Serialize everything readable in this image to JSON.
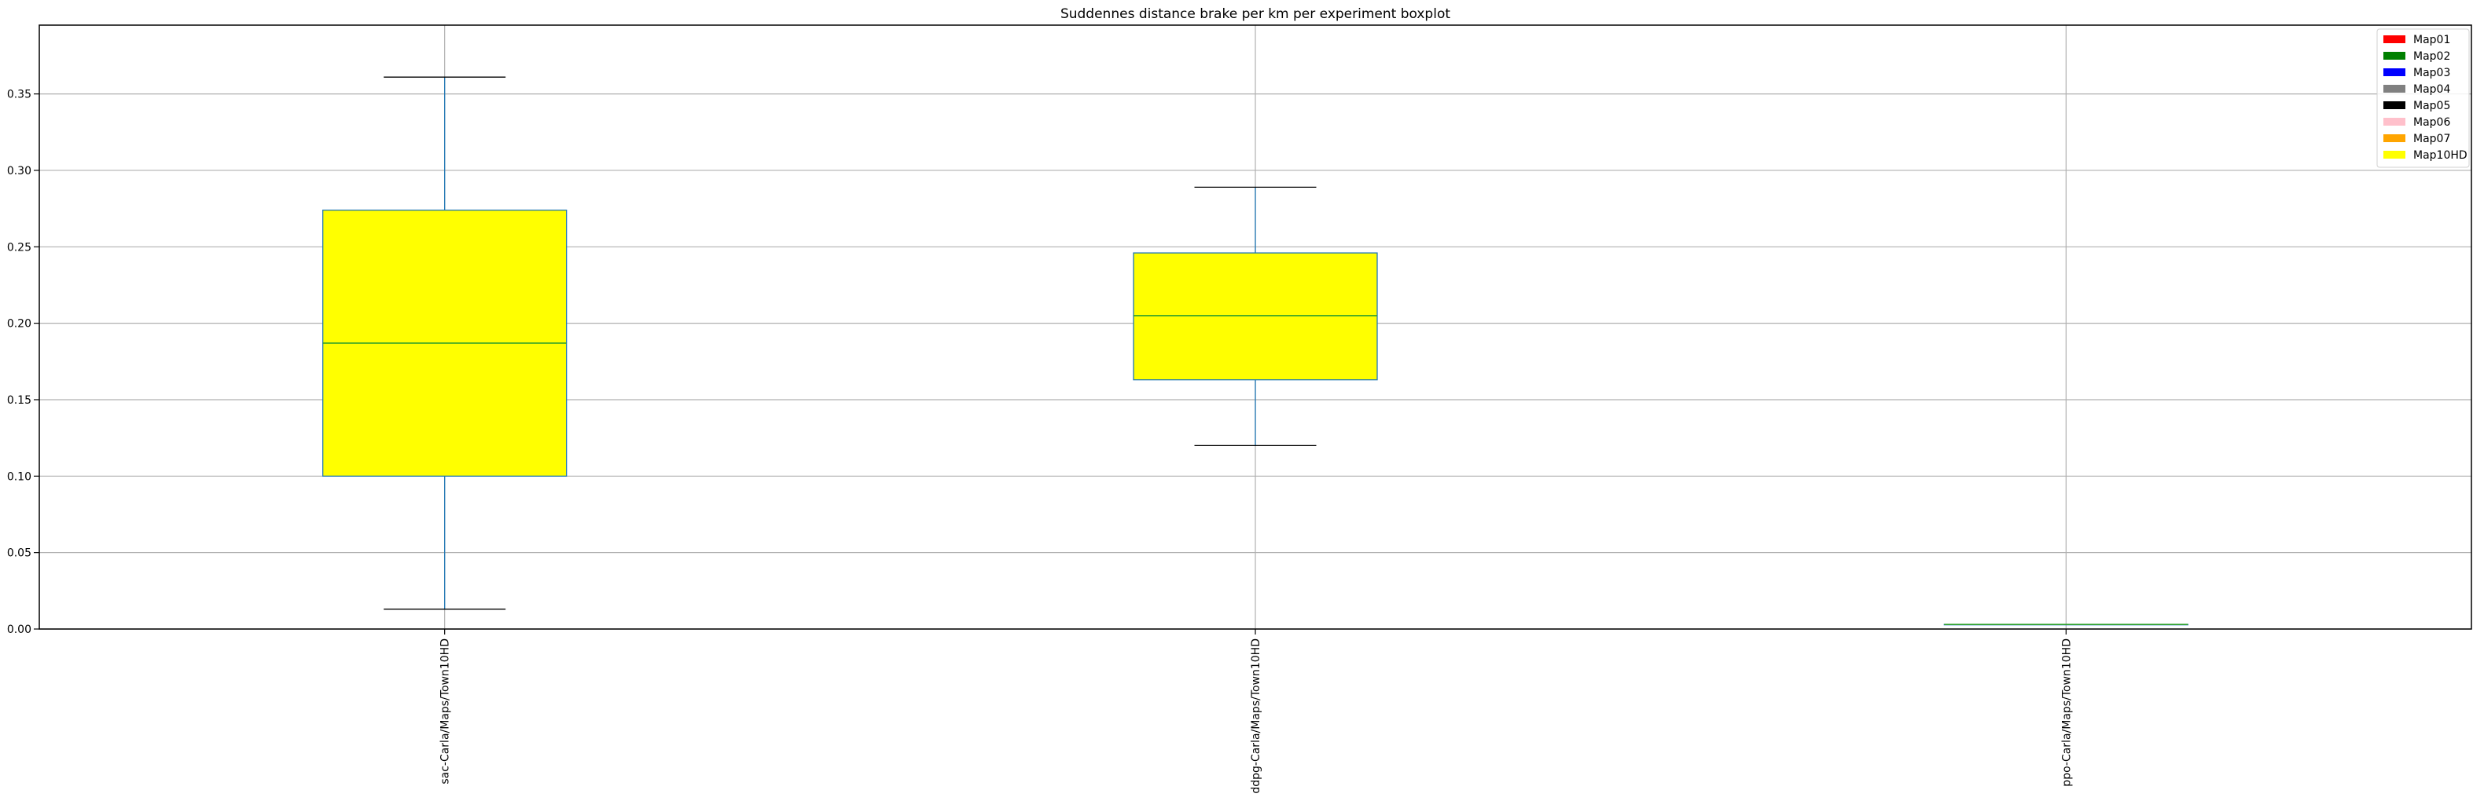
{
  "chart_data": {
    "type": "boxplot",
    "title": "Suddennes distance brake per km per experiment boxplot",
    "xlabel": "",
    "ylabel": "",
    "ylim": [
      0.0,
      0.395
    ],
    "yticks": [
      "0.00",
      "0.05",
      "0.10",
      "0.15",
      "0.20",
      "0.25",
      "0.30",
      "0.35"
    ],
    "grid": true,
    "legend_position": "top-right",
    "categories": [
      "sac-Carla/Maps/Town10HD",
      "ddpg-Carla/Maps/Town10HD",
      "ppo-Carla/Maps/Town10HD"
    ],
    "boxes": [
      {
        "category": "sac-Carla/Maps/Town10HD",
        "whislo": 0.013,
        "q1": 0.1,
        "median": 0.187,
        "q3": 0.274,
        "whishi": 0.361,
        "fill": "#ffff00"
      },
      {
        "category": "ddpg-Carla/Maps/Town10HD",
        "whislo": 0.12,
        "q1": 0.163,
        "median": 0.205,
        "q3": 0.246,
        "whishi": 0.289,
        "fill": "#ffff00"
      },
      {
        "category": "ppo-Carla/Maps/Town10HD",
        "whislo": 0.003,
        "q1": 0.003,
        "median": 0.003,
        "q3": 0.003,
        "whishi": 0.003,
        "fill": "#ffff00"
      }
    ],
    "legend": [
      {
        "label": "Map01",
        "color": "#ff0000"
      },
      {
        "label": "Map02",
        "color": "#008000"
      },
      {
        "label": "Map03",
        "color": "#0000ff"
      },
      {
        "label": "Map04",
        "color": "#808080"
      },
      {
        "label": "Map05",
        "color": "#000000"
      },
      {
        "label": "Map06",
        "color": "#ffc0cb"
      },
      {
        "label": "Map07",
        "color": "#ffa500"
      },
      {
        "label": "Map10HD",
        "color": "#ffff00"
      }
    ],
    "colors": {
      "box_edge": "#1f77b4",
      "median": "#2ca02c",
      "whisker": "#1f77b4",
      "cap": "#000000",
      "grid": "#b0b0b0"
    }
  }
}
